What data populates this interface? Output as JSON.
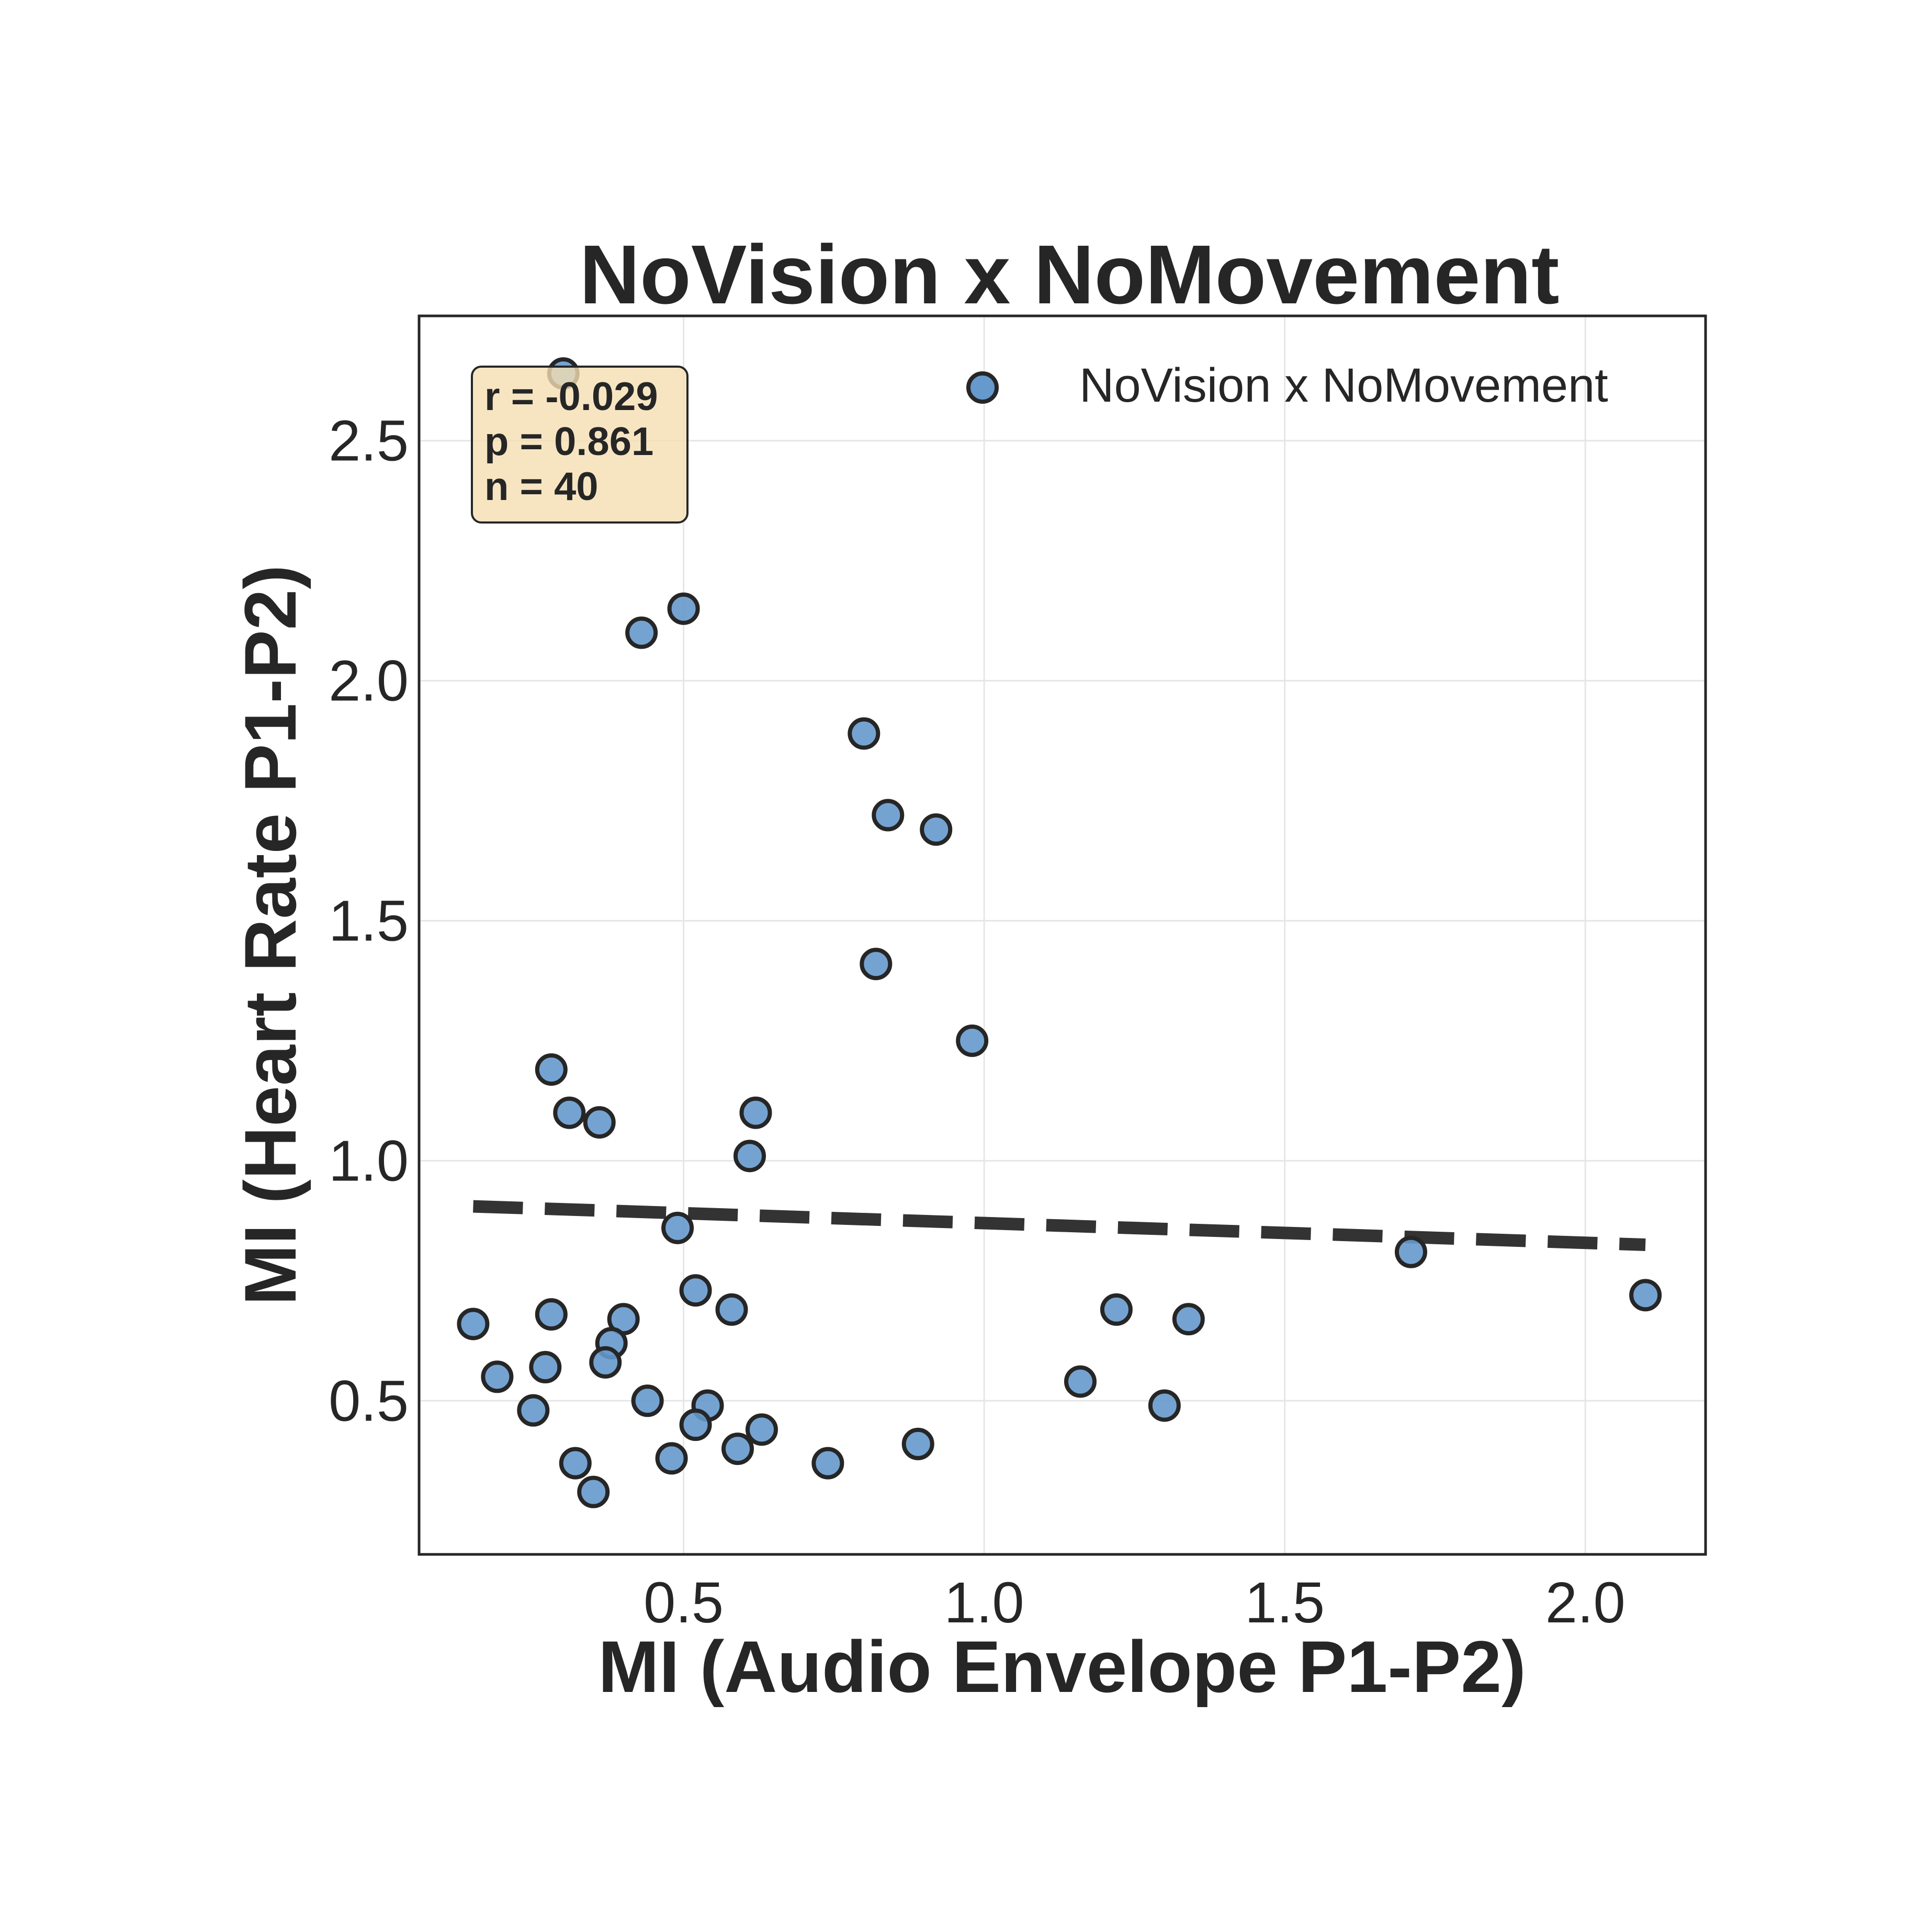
{
  "chart_data": {
    "type": "scatter",
    "title": "NoVision x NoMovement",
    "xlabel": "MI (Audio Envelope P1-P2)",
    "ylabel": "MI (Heart Rate P1-P2)",
    "xlim": [
      0.06,
      2.2
    ],
    "ylim": [
      0.18,
      2.76
    ],
    "xticks": [
      0.5,
      1.0,
      1.5,
      2.0
    ],
    "xtick_labels": [
      "0.5",
      "1.0",
      "1.5",
      "2.0"
    ],
    "yticks": [
      0.5,
      1.0,
      1.5,
      2.0,
      2.5
    ],
    "ytick_labels": [
      "0.5",
      "1.0",
      "1.5",
      "2.0",
      "2.5"
    ],
    "grid": true,
    "legend": {
      "position": "top-right",
      "entries": [
        "NoVision x NoMovement"
      ]
    },
    "series": [
      {
        "name": "NoVision x NoMovement",
        "color": "#6699cc",
        "edge_color": "#262626",
        "points": [
          {
            "x": 0.3,
            "y": 2.64
          },
          {
            "x": 0.5,
            "y": 2.15
          },
          {
            "x": 0.43,
            "y": 2.1
          },
          {
            "x": 0.8,
            "y": 1.89
          },
          {
            "x": 0.84,
            "y": 1.72
          },
          {
            "x": 0.92,
            "y": 1.69
          },
          {
            "x": 0.82,
            "y": 1.41
          },
          {
            "x": 0.98,
            "y": 1.25
          },
          {
            "x": 0.28,
            "y": 1.19
          },
          {
            "x": 0.31,
            "y": 1.1
          },
          {
            "x": 0.36,
            "y": 1.08
          },
          {
            "x": 0.62,
            "y": 1.1
          },
          {
            "x": 0.61,
            "y": 1.01
          },
          {
            "x": 0.49,
            "y": 0.86
          },
          {
            "x": 1.71,
            "y": 0.81
          },
          {
            "x": 2.1,
            "y": 0.72
          },
          {
            "x": 0.52,
            "y": 0.73
          },
          {
            "x": 0.15,
            "y": 0.66
          },
          {
            "x": 0.28,
            "y": 0.68
          },
          {
            "x": 0.4,
            "y": 0.67
          },
          {
            "x": 0.58,
            "y": 0.69
          },
          {
            "x": 1.22,
            "y": 0.69
          },
          {
            "x": 1.34,
            "y": 0.67
          },
          {
            "x": 0.38,
            "y": 0.62
          },
          {
            "x": 0.37,
            "y": 0.58
          },
          {
            "x": 0.27,
            "y": 0.57
          },
          {
            "x": 0.19,
            "y": 0.55
          },
          {
            "x": 1.16,
            "y": 0.54
          },
          {
            "x": 0.25,
            "y": 0.48
          },
          {
            "x": 0.44,
            "y": 0.5
          },
          {
            "x": 0.54,
            "y": 0.49
          },
          {
            "x": 0.52,
            "y": 0.45
          },
          {
            "x": 1.3,
            "y": 0.49
          },
          {
            "x": 0.63,
            "y": 0.44
          },
          {
            "x": 0.89,
            "y": 0.41
          },
          {
            "x": 0.59,
            "y": 0.4
          },
          {
            "x": 0.48,
            "y": 0.38
          },
          {
            "x": 0.32,
            "y": 0.37
          },
          {
            "x": 0.74,
            "y": 0.37
          },
          {
            "x": 0.35,
            "y": 0.31
          }
        ]
      }
    ],
    "regression_line": {
      "style": "dashed",
      "color": "#333333",
      "x": [
        0.15,
        2.1
      ],
      "y": [
        0.905,
        0.825
      ]
    },
    "stats_box": {
      "position": "top-left",
      "lines": [
        "r = -0.029",
        "p = 0.861",
        "n = 40"
      ],
      "background": "#f5deb3"
    }
  }
}
